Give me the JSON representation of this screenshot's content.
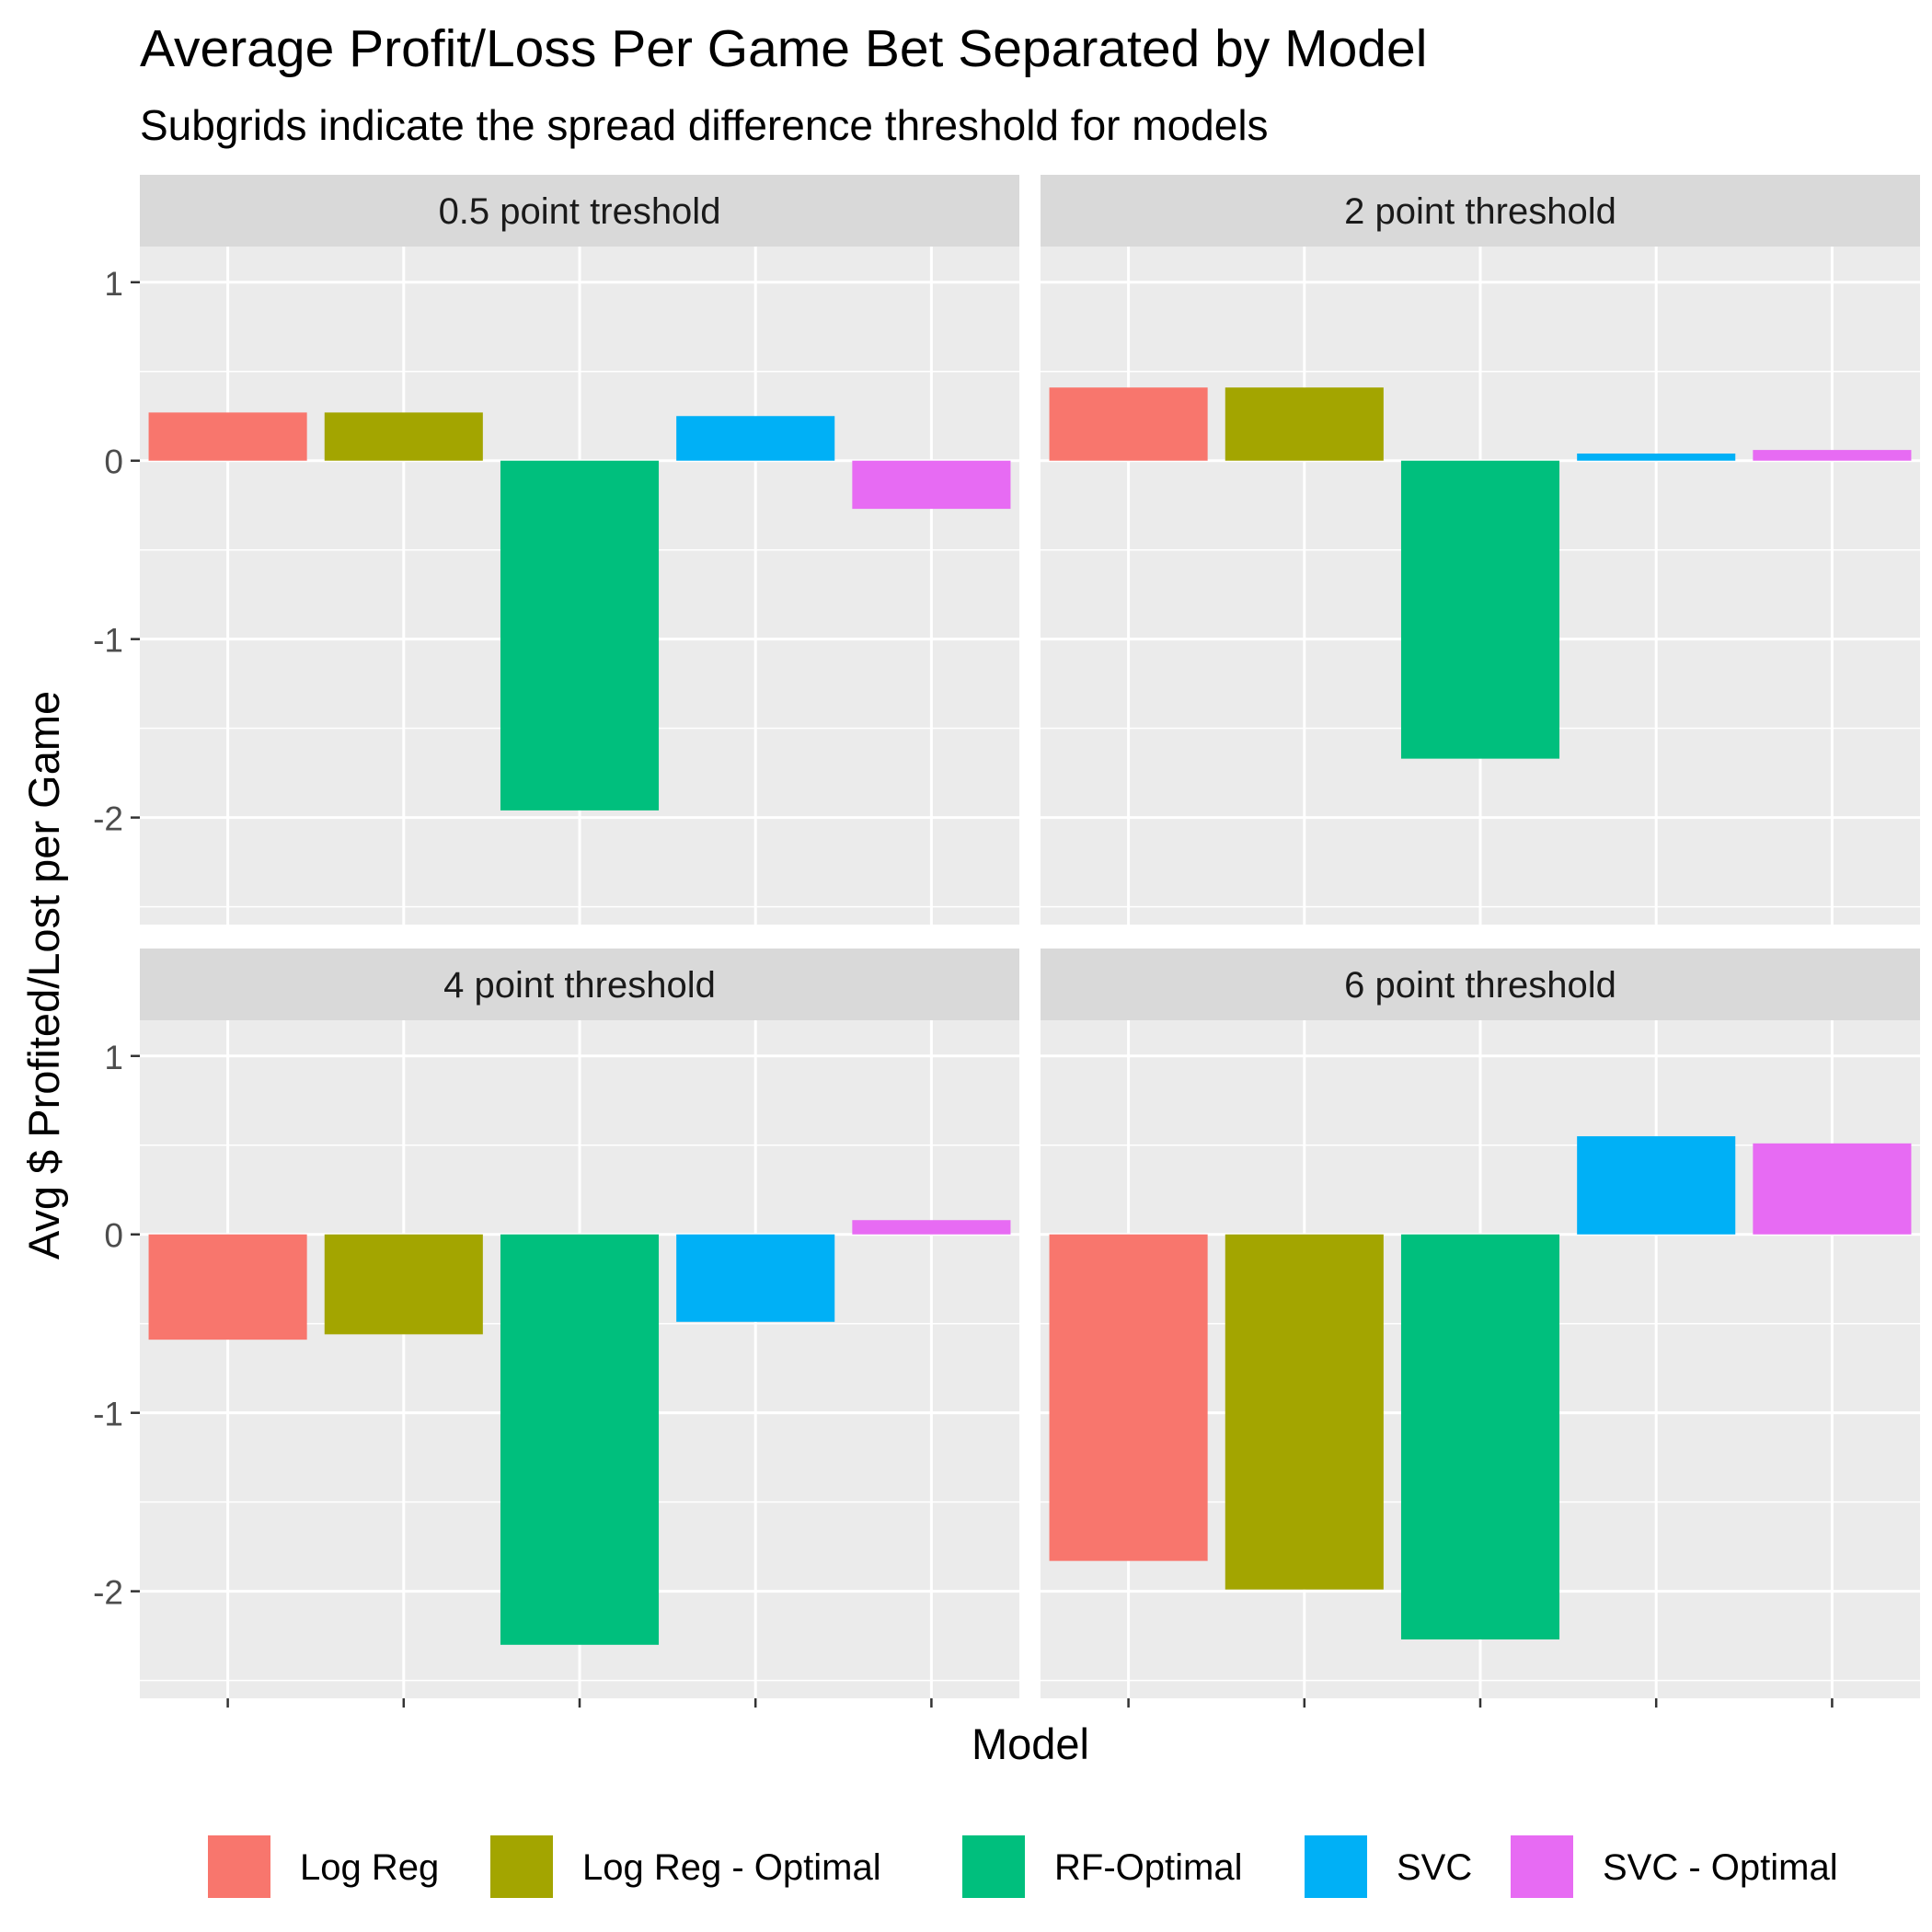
{
  "chart_data": {
    "type": "bar",
    "title": "Average Profit/Loss Per Game Bet Separated by Model",
    "subtitle": "Subgrids indicate the spread difference threshold for models",
    "xlabel": "Model",
    "ylabel": "Avg $ Profited/Lost per Game",
    "categories": [
      "Log Reg",
      "Log Reg - Optimal",
      "RF-Optimal",
      "SVC",
      "SVC - Optimal"
    ],
    "colors": [
      "#F8766D",
      "#A3A500",
      "#00BF7D",
      "#00B0F6",
      "#E76BF3"
    ],
    "ylim": [
      -2.6,
      1.2
    ],
    "yticks": [
      1,
      0,
      -1,
      -2
    ],
    "grid": true,
    "legend_position": "bottom",
    "panels": [
      {
        "label": "0.5 point treshold",
        "values": [
          0.27,
          0.27,
          -1.96,
          0.25,
          -0.27
        ]
      },
      {
        "label": "2 point threshold",
        "values": [
          0.41,
          0.41,
          -1.67,
          0.04,
          0.06
        ]
      },
      {
        "label": "4 point threshold",
        "values": [
          -0.59,
          -0.56,
          -2.3,
          -0.49,
          0.08
        ]
      },
      {
        "label": "6 point threshold",
        "values": [
          -1.83,
          -1.99,
          -2.27,
          0.55,
          0.51
        ]
      }
    ]
  }
}
